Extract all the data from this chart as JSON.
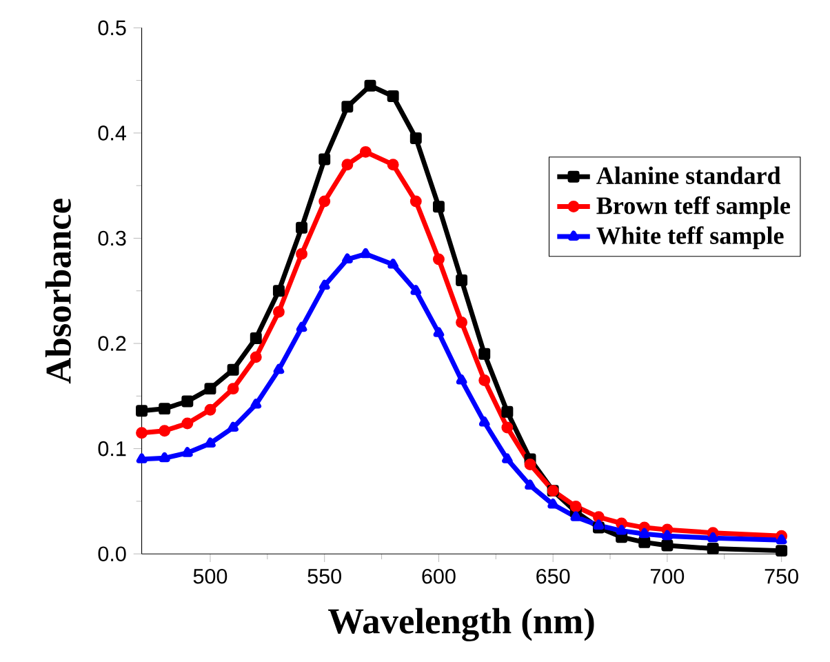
{
  "chart_data": {
    "type": "line",
    "xlabel": "Wavelength (nm)",
    "ylabel": "Absorbance",
    "xlim": [
      470,
      750
    ],
    "ylim": [
      0,
      0.5
    ],
    "xticks": [
      500,
      550,
      600,
      650,
      700,
      750
    ],
    "yticks": [
      {
        "value": 0,
        "label": "0.0"
      },
      0.1,
      0.2,
      0.3,
      0.4,
      0.5
    ],
    "legend": "right",
    "grid": false,
    "series": [
      {
        "name": "Alanine standard",
        "color": "#000000",
        "marker": "square",
        "x": [
          470,
          480,
          490,
          500,
          510,
          520,
          530,
          540,
          550,
          560,
          570,
          580,
          590,
          600,
          610,
          620,
          630,
          640,
          650,
          660,
          670,
          680,
          690,
          700,
          720,
          750
        ],
        "values": [
          0.136,
          0.138,
          0.145,
          0.157,
          0.175,
          0.205,
          0.25,
          0.31,
          0.375,
          0.425,
          0.445,
          0.435,
          0.395,
          0.33,
          0.26,
          0.19,
          0.135,
          0.09,
          0.06,
          0.04,
          0.025,
          0.016,
          0.011,
          0.008,
          0.005,
          0.003
        ]
      },
      {
        "name": "Brown teff sample",
        "color": "#ff0000",
        "marker": "circle",
        "x": [
          470,
          480,
          490,
          500,
          510,
          520,
          530,
          540,
          550,
          560,
          568,
          580,
          590,
          600,
          610,
          620,
          630,
          640,
          650,
          660,
          670,
          680,
          690,
          700,
          720,
          750
        ],
        "values": [
          0.115,
          0.117,
          0.124,
          0.137,
          0.157,
          0.187,
          0.23,
          0.285,
          0.335,
          0.37,
          0.382,
          0.37,
          0.335,
          0.28,
          0.22,
          0.165,
          0.12,
          0.085,
          0.06,
          0.045,
          0.035,
          0.029,
          0.025,
          0.023,
          0.02,
          0.017
        ]
      },
      {
        "name": "White teff sample",
        "color": "#0000ff",
        "marker": "triangle",
        "x": [
          470,
          480,
          490,
          500,
          510,
          520,
          530,
          540,
          550,
          560,
          568,
          580,
          590,
          600,
          610,
          620,
          630,
          640,
          650,
          660,
          670,
          680,
          690,
          700,
          720,
          750
        ],
        "values": [
          0.09,
          0.091,
          0.096,
          0.105,
          0.12,
          0.142,
          0.175,
          0.215,
          0.255,
          0.28,
          0.285,
          0.275,
          0.25,
          0.21,
          0.165,
          0.125,
          0.09,
          0.065,
          0.047,
          0.035,
          0.027,
          0.022,
          0.019,
          0.017,
          0.015,
          0.013
        ]
      }
    ]
  }
}
